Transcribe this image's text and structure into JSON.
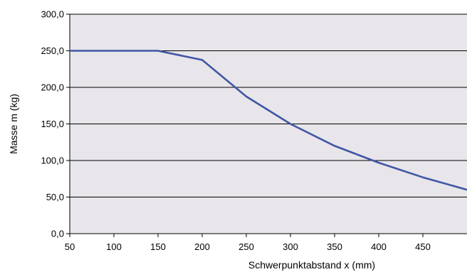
{
  "chart_data": {
    "type": "line",
    "title": "",
    "xlabel": "Schwerpunktabstand x (mm)",
    "ylabel": "Masse m (kg)",
    "xlim": [
      50,
      500
    ],
    "ylim": [
      0,
      300
    ],
    "x_ticks": [
      50,
      100,
      150,
      200,
      250,
      300,
      350,
      400,
      450
    ],
    "x_tick_labels": [
      "50",
      "100",
      "150",
      "200",
      "250",
      "300",
      "350",
      "400",
      "450"
    ],
    "y_ticks": [
      0,
      50,
      100,
      150,
      200,
      250,
      300
    ],
    "y_tick_labels": [
      "0,0",
      "50,0",
      "100,0",
      "150,0",
      "200,0",
      "250,0",
      "300,0"
    ],
    "grid": "horizontal",
    "legend": "none",
    "series": [
      {
        "x": [
          50,
          100,
          150,
          200,
          250,
          300,
          350,
          400,
          450,
          500
        ],
        "y": [
          250,
          250,
          250,
          237.5,
          187.5,
          150,
          120,
          97,
          77,
          60
        ]
      }
    ],
    "colors": {
      "plot_background": "#e8e6ea",
      "line": "#3f57a5",
      "grid": "#000000"
    }
  }
}
